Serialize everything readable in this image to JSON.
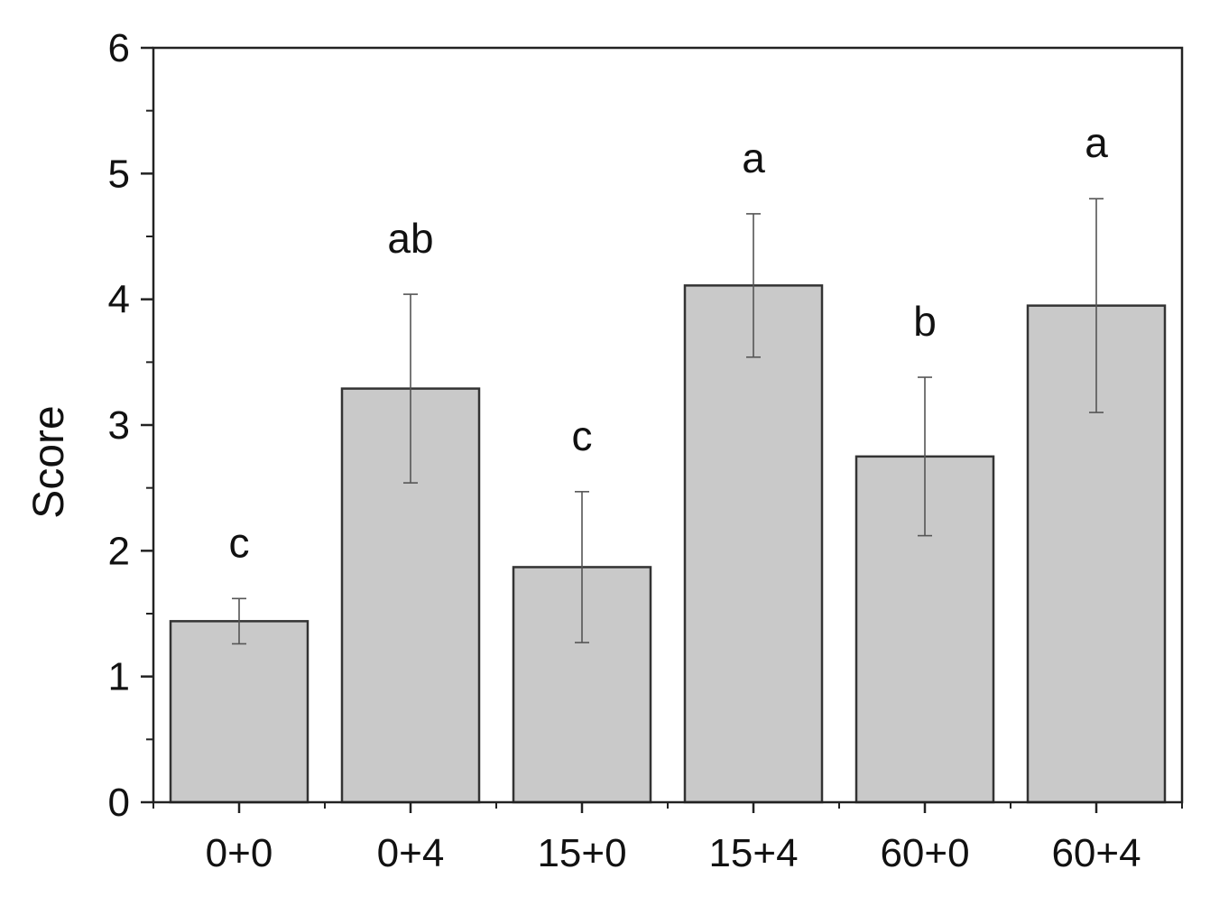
{
  "chart_data": {
    "type": "bar",
    "title": "",
    "xlabel": "",
    "ylabel": "Score",
    "ylim": [
      0,
      6
    ],
    "yticks": [
      "0",
      "1",
      "2",
      "3",
      "4",
      "5",
      "6"
    ],
    "categories": [
      "0+0",
      "0+4",
      "15+0",
      "15+4",
      "60+0",
      "60+4"
    ],
    "values": [
      1.44,
      3.29,
      1.87,
      4.11,
      2.75,
      3.95
    ],
    "errors": [
      0.18,
      0.75,
      0.6,
      0.57,
      0.63,
      0.85
    ],
    "significance_labels": [
      "c",
      "ab",
      "c",
      "a",
      "b",
      "a"
    ],
    "grid": false,
    "bar_color": "#c9c9c9",
    "bar_edge_color": "#333333",
    "error_bar_color": "#555555"
  }
}
